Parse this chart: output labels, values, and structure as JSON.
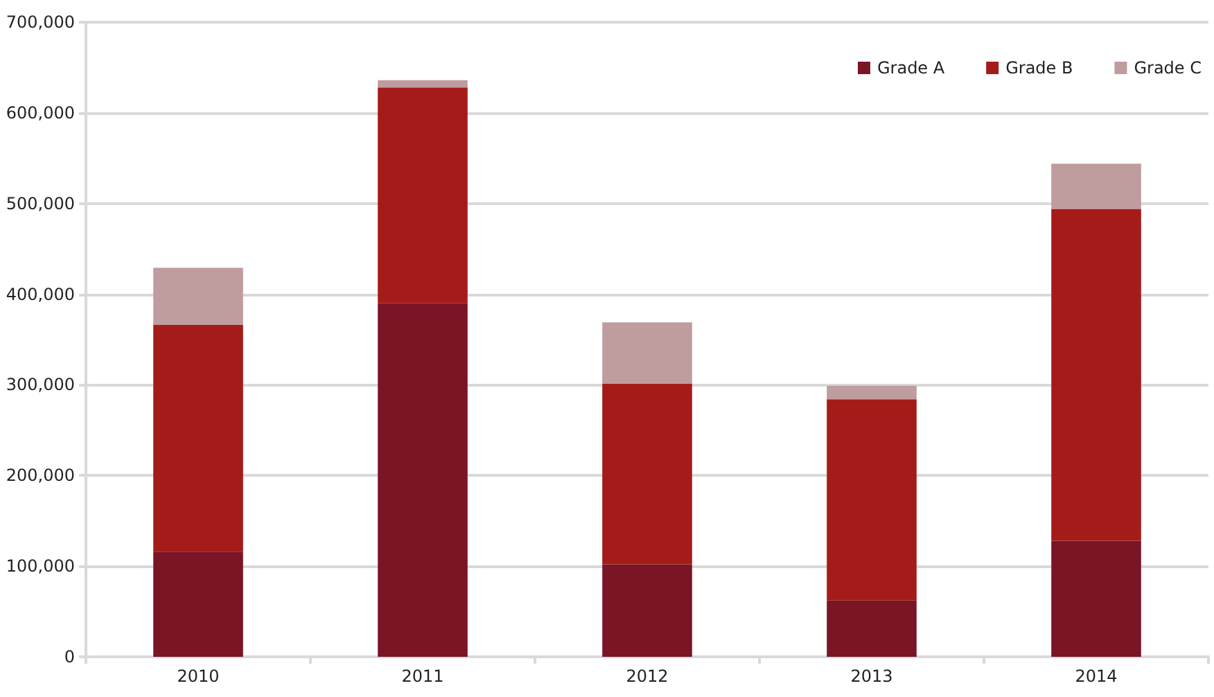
{
  "chart_data": {
    "type": "bar",
    "stacked": true,
    "categories": [
      "2010",
      "2011",
      "2012",
      "2013",
      "2014"
    ],
    "series": [
      {
        "name": "Grade A",
        "color": "#7a1526",
        "values": [
          116000,
          390000,
          102000,
          62000,
          128000
        ]
      },
      {
        "name": "Grade B",
        "color": "#a51b19",
        "values": [
          250000,
          238000,
          199000,
          222000,
          366000
        ]
      },
      {
        "name": "Grade C",
        "color": "#bf9c9e",
        "values": [
          63000,
          8000,
          68000,
          15000,
          50000
        ]
      }
    ],
    "ylim": [
      0,
      700000
    ],
    "yticks": [
      {
        "value": 0,
        "label": "0"
      },
      {
        "value": 100000,
        "label": "100,000"
      },
      {
        "value": 200000,
        "label": "200,000"
      },
      {
        "value": 300000,
        "label": "300,000"
      },
      {
        "value": 400000,
        "label": "400,000"
      },
      {
        "value": 500000,
        "label": "500,000"
      },
      {
        "value": 600000,
        "label": "600,000"
      },
      {
        "value": 700000,
        "label": "700,000"
      }
    ],
    "grid": "y",
    "legend": "top right"
  }
}
